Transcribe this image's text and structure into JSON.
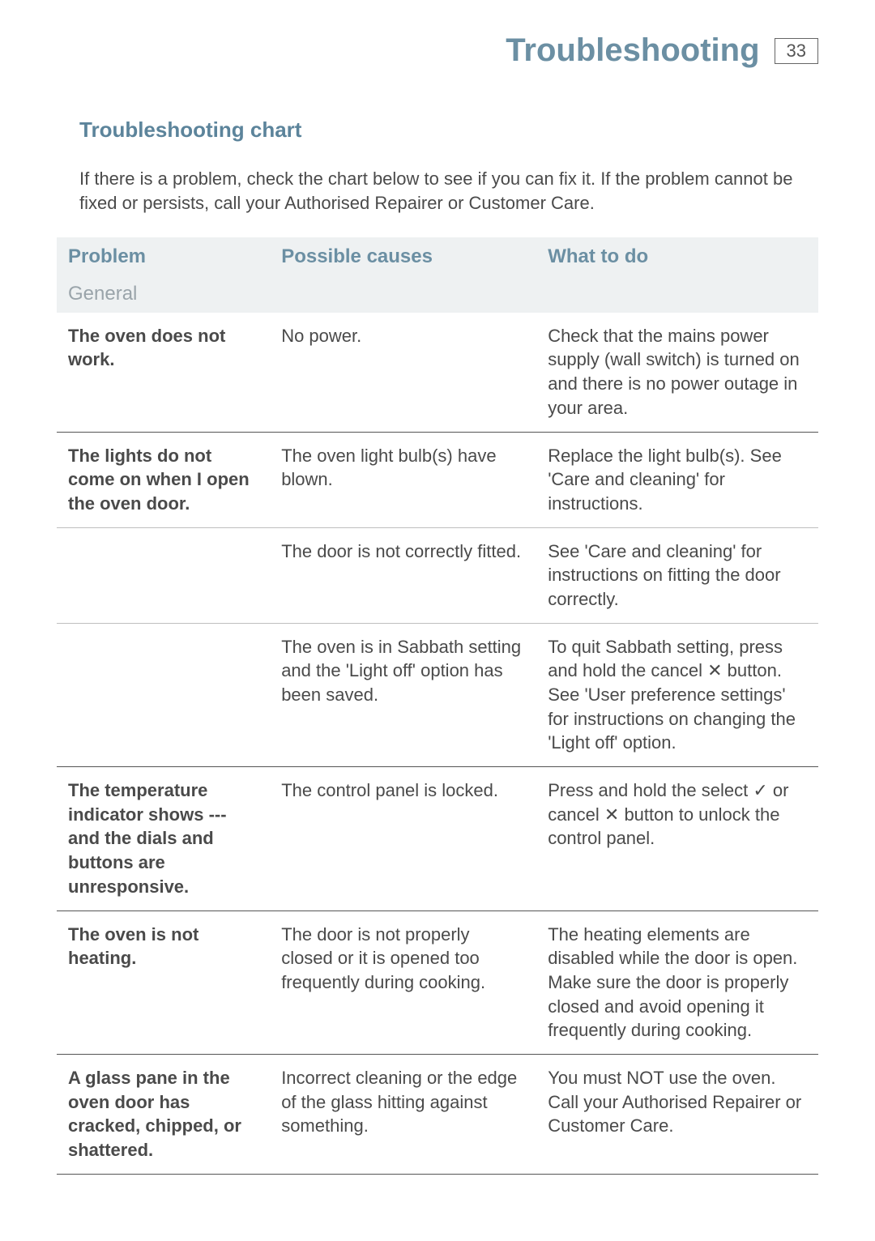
{
  "header": {
    "title": "Troubleshooting",
    "page_number": "33"
  },
  "section": {
    "title": "Troubleshooting chart",
    "intro": "If there is a problem, check the chart below to see if you can fix it. If the problem cannot be fixed or persists, call your Authorised Repairer or Customer Care."
  },
  "table": {
    "columns": [
      "Problem",
      "Possible causes",
      "What to do"
    ],
    "group_label": "General",
    "rows": [
      {
        "problem": "The oven does not work.",
        "cause": "No power.",
        "action": "Check that the mains power supply (wall switch) is turned on and there is no power outage in your area.",
        "rule": "ruled"
      },
      {
        "problem": "The lights do not come on when I open the oven door.",
        "cause": "The oven light bulb(s) have blown.",
        "action": "Replace the light bulb(s). See 'Care and cleaning' for instructions.",
        "rule": "hair"
      },
      {
        "problem": "",
        "cause": "The door is not correctly fitted.",
        "action": "See 'Care and cleaning' for instructions on fitting the door correctly.",
        "rule": "hair"
      },
      {
        "problem": "",
        "cause": "The oven is in Sabbath setting and the 'Light off' option has been saved.",
        "action": "To quit Sabbath setting, press and hold the cancel ✕ button. See 'User preference settings' for instructions on changing the 'Light off' option.",
        "rule": "ruled"
      },
      {
        "problem": "The temperature indicator shows --- and the dials and buttons are unresponsive.",
        "cause": "The control panel is locked.",
        "action": "Press and hold the select ✓ or cancel ✕ button to unlock the control panel.",
        "rule": "ruled"
      },
      {
        "problem": "The oven is not heating.",
        "cause": "The door is not properly closed or it is opened too frequently during cooking.",
        "action": "The heating elements are disabled while the door is open. Make sure the door is properly closed and avoid opening it frequently during cooking.",
        "rule": "ruled"
      },
      {
        "problem": "A glass pane in the oven door has cracked, chipped, or shattered.",
        "cause": "Incorrect cleaning or the edge of the glass hitting against something.",
        "action": "You must NOT use the oven. Call your Authorised Repairer or Customer Care.",
        "rule": "ruled"
      }
    ]
  },
  "colors": {
    "heading": "#6b8fa3",
    "header_bg": "#eef1f2",
    "group_text": "#9aa4aa",
    "body_text": "#4a4a4a",
    "rule": "#555555",
    "hairline": "#bfbfbf"
  }
}
